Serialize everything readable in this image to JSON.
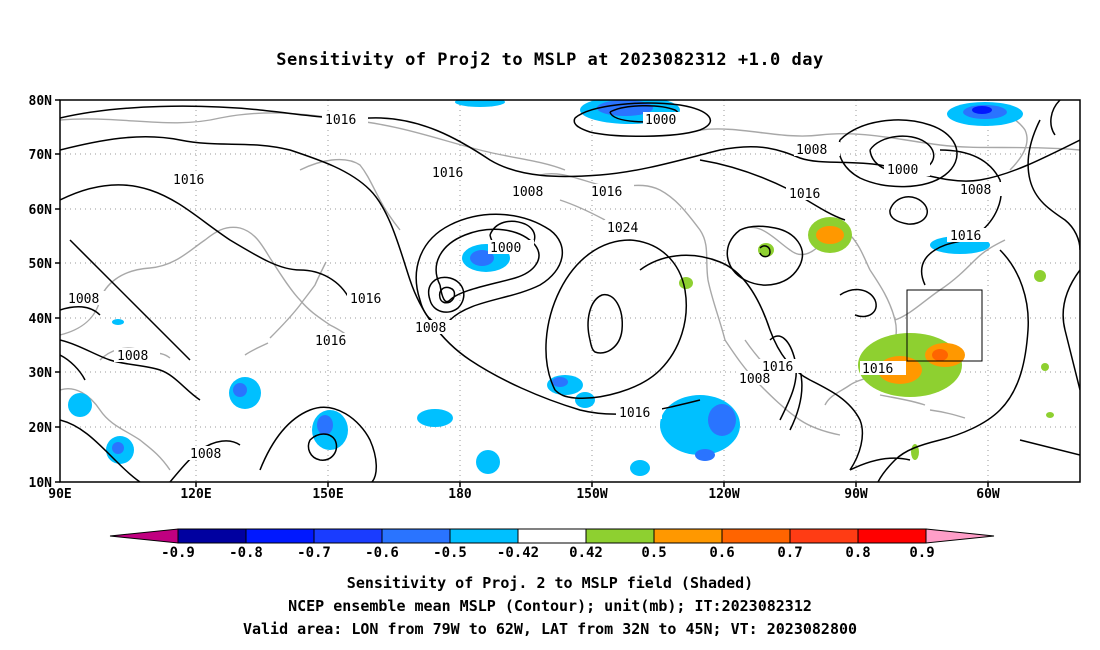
{
  "title": "Sensitivity of Proj2 to MSLP at 2023082312 +1.0 day",
  "axes": {
    "lat_labels": [
      "80N",
      "70N",
      "60N",
      "50N",
      "40N",
      "30N",
      "20N",
      "10N"
    ],
    "lon_labels": [
      "90E",
      "120E",
      "150E",
      "180",
      "150W",
      "120W",
      "90W",
      "60W"
    ]
  },
  "contour_labels": [
    "1016",
    "1000",
    "1008",
    "1016",
    "1016",
    "1008",
    "1016",
    "1024",
    "1000",
    "1008",
    "1000",
    "1008",
    "1016",
    "1008",
    "1016",
    "1016",
    "1008",
    "1016",
    "1008",
    "1016",
    "1016",
    "1008"
  ],
  "colorbar": {
    "tick_labels": [
      "-0.9",
      "-0.8",
      "-0.7",
      "-0.6",
      "-0.5",
      "-0.42",
      "0.42",
      "0.5",
      "0.6",
      "0.7",
      "0.8",
      "0.9"
    ],
    "colors": [
      "#c00080",
      "#0000a0",
      "#0018ff",
      "#1a3cff",
      "#2a74ff",
      "#00c0ff",
      "#ffffff",
      "#8ed030",
      "#ff9800",
      "#ff6400",
      "#ff3c14",
      "#ff0000",
      "#ff9ec8"
    ]
  },
  "captions": [
    "Sensitivity of Proj. 2 to MSLP field (Shaded)",
    "NCEP ensemble mean MSLP (Contour); unit(mb); IT:2023082312",
    "Valid area: LON from 79W to 62W, LAT from 32N to 45N; VT: 2023082800"
  ]
}
